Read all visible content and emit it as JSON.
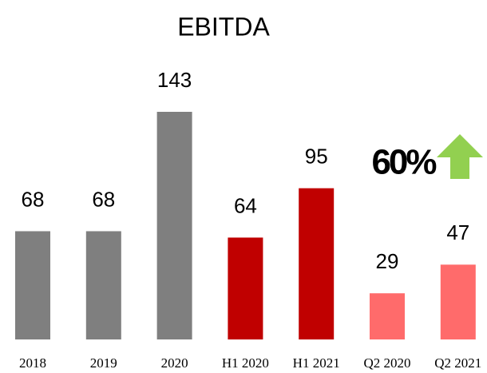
{
  "chart_data": {
    "type": "bar",
    "title": "EBITDA",
    "categories": [
      "2018",
      "2019",
      "2020",
      "H1 2020",
      "H1 2021",
      "Q2 2020",
      "Q2 2021"
    ],
    "values": [
      68,
      68,
      143,
      64,
      95,
      29,
      47
    ],
    "colors": [
      "#7f7f7f",
      "#7f7f7f",
      "#7f7f7f",
      "#c00000",
      "#c00000",
      "#ff6b6b",
      "#ff6b6b"
    ],
    "annotation": "60%"
  }
}
